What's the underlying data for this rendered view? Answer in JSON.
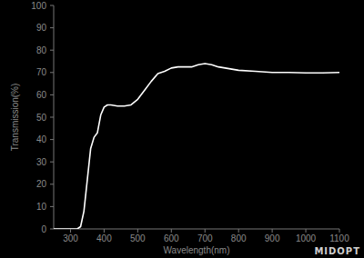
{
  "chart_data": {
    "type": "line",
    "x_label": "Wavelength(nm)",
    "y_label": "Transmission(%)",
    "annotations": [
      "MIDOPT"
    ],
    "x": [
      250,
      300,
      320,
      330,
      340,
      350,
      360,
      370,
      380,
      390,
      400,
      410,
      420,
      440,
      460,
      480,
      500,
      520,
      540,
      560,
      580,
      600,
      620,
      640,
      660,
      680,
      700,
      720,
      740,
      760,
      780,
      800,
      850,
      900,
      950,
      1000,
      1050,
      1100
    ],
    "values": [
      0,
      0,
      0,
      1,
      8,
      22,
      36,
      41,
      43,
      51,
      54.5,
      55.5,
      55.5,
      55,
      55,
      55.5,
      58,
      62,
      66,
      69.5,
      70.5,
      72,
      72.5,
      72.5,
      72.5,
      73.5,
      74,
      73.5,
      72.5,
      72,
      71.5,
      71,
      70.5,
      70,
      70,
      69.8,
      69.8,
      70
    ],
    "color": "#ffffff",
    "xlim": [
      250,
      1100
    ],
    "ylim": [
      0,
      100
    ],
    "xticks": [
      300,
      400,
      500,
      600,
      700,
      800,
      900,
      1000,
      1100
    ],
    "yticks": [
      0,
      10,
      20,
      30,
      40,
      50,
      60,
      70,
      80,
      90,
      100
    ],
    "grid": false
  }
}
